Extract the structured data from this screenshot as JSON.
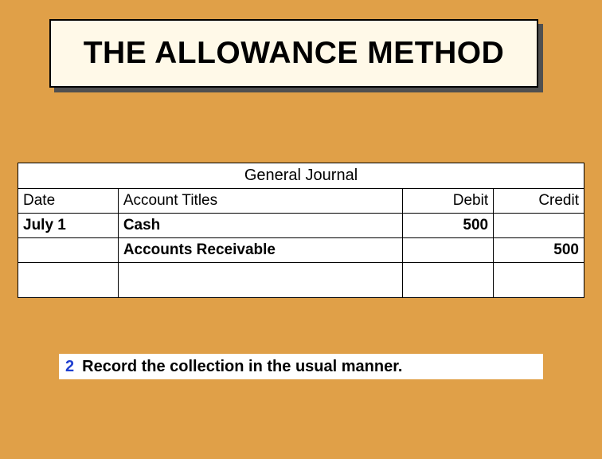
{
  "title": "THE ALLOWANCE METHOD",
  "journal": {
    "header": "General Journal",
    "columns": {
      "date": "Date",
      "title": "Account Titles",
      "debit": "Debit",
      "credit": "Credit"
    },
    "entries": [
      {
        "date": "July 1",
        "account1": "Cash",
        "account2": "Accounts Receivable",
        "debit": "500",
        "credit": "500"
      }
    ]
  },
  "instruction": {
    "number": "2",
    "text": "Record the collection in the usual manner."
  },
  "colors": {
    "background": "#e0a048",
    "title_bg": "#fff9e8",
    "shadow": "#505050",
    "white": "#ffffff",
    "border": "#000000",
    "instruction_num": "#2040d0"
  }
}
